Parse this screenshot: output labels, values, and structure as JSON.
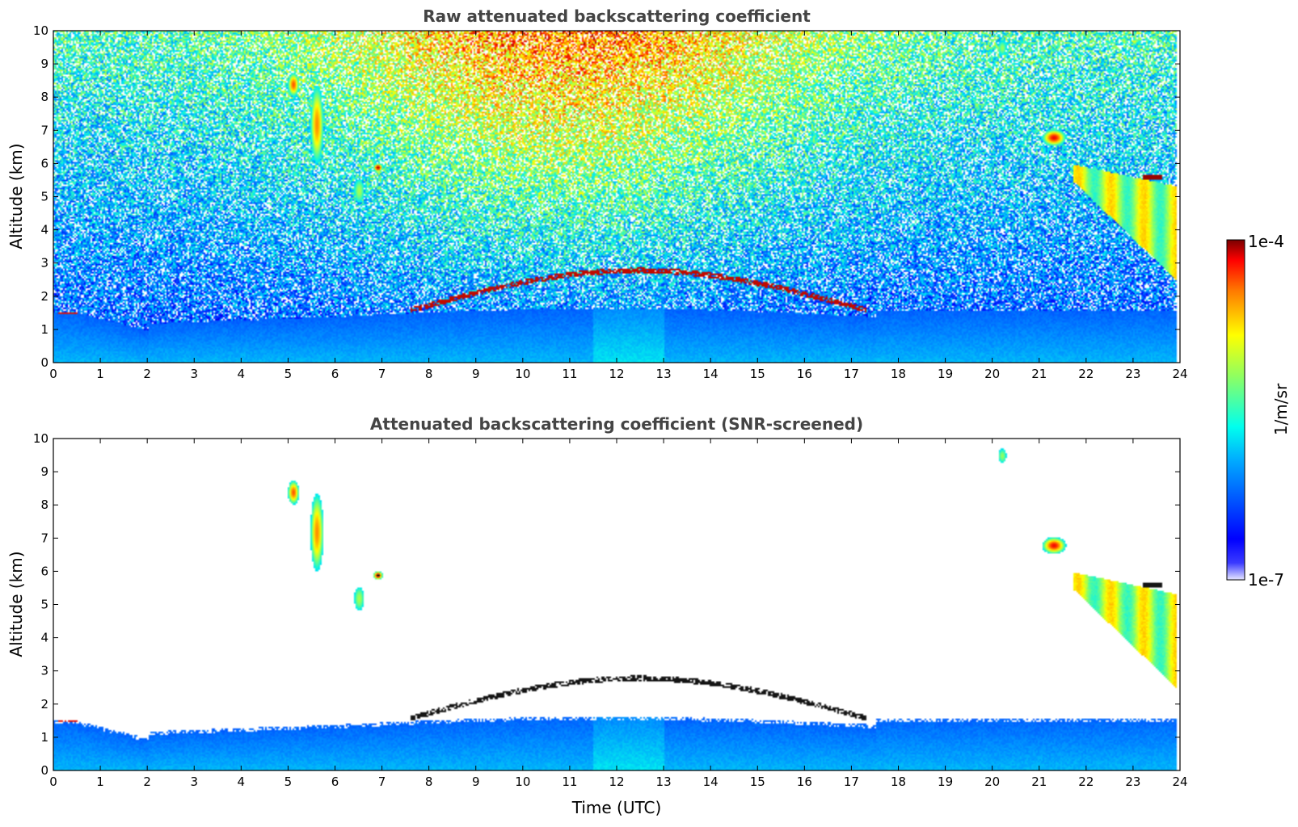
{
  "chart_data": [
    {
      "type": "heatmap",
      "title": "Raw attenuated backscattering coefficient",
      "xlabel": "",
      "ylabel": "Altitude (km)",
      "xlim": [
        0,
        24
      ],
      "ylim": [
        0,
        10
      ],
      "xticks": [
        "0",
        "1",
        "2",
        "3",
        "4",
        "5",
        "6",
        "7",
        "8",
        "9",
        "10",
        "11",
        "12",
        "13",
        "14",
        "15",
        "16",
        "17",
        "18",
        "19",
        "20",
        "21",
        "22",
        "23",
        "24"
      ],
      "yticks": [
        "0",
        "1",
        "2",
        "3",
        "4",
        "5",
        "6",
        "7",
        "8",
        "9",
        "10"
      ],
      "screened": false,
      "grid": false
    },
    {
      "type": "heatmap",
      "title": "Attenuated backscattering coefficient (SNR-screened)",
      "xlabel": "Time (UTC)",
      "ylabel": "Altitude (km)",
      "xlim": [
        0,
        24
      ],
      "ylim": [
        0,
        10
      ],
      "xticks": [
        "0",
        "1",
        "2",
        "3",
        "4",
        "5",
        "6",
        "7",
        "8",
        "9",
        "10",
        "11",
        "12",
        "13",
        "14",
        "15",
        "16",
        "17",
        "18",
        "19",
        "20",
        "21",
        "22",
        "23",
        "24"
      ],
      "yticks": [
        "0",
        "1",
        "2",
        "3",
        "4",
        "5",
        "6",
        "7",
        "8",
        "9",
        "10"
      ],
      "screened": true,
      "grid": false
    }
  ],
  "colorbar": {
    "label": "1/m/sr",
    "max_label": "1e-4",
    "min_label": "1e-7",
    "scale": "log",
    "colormap": "jet",
    "colors": [
      "#ffffff",
      "#0000ff",
      "#00a0ff",
      "#00ffff",
      "#80ff80",
      "#ffff00",
      "#ff8000",
      "#ff0000",
      "#800000"
    ]
  }
}
